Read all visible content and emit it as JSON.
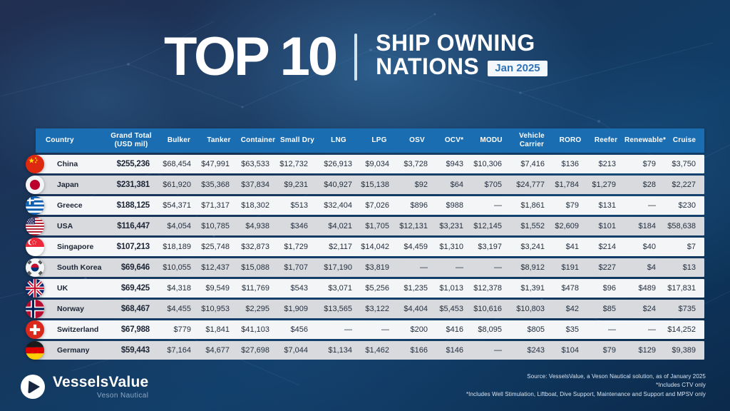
{
  "header": {
    "title_main": "TOP 10",
    "subtitle_line1": "SHIP OWNING",
    "subtitle_line2": "NATIONS",
    "date_badge": "Jan 2025"
  },
  "chart_data": {
    "type": "table",
    "title": "Top 10 Ship Owning Nations, Jan 2025 (values in USD mil)",
    "columns": [
      {
        "key": "country",
        "label": "Country"
      },
      {
        "key": "grand-total",
        "label": "Grand Total\n(USD mil)"
      },
      {
        "key": "bulker",
        "label": "Bulker"
      },
      {
        "key": "tanker",
        "label": "Tanker"
      },
      {
        "key": "container",
        "label": "Container"
      },
      {
        "key": "small-dry",
        "label": "Small Dry"
      },
      {
        "key": "lng",
        "label": "LNG"
      },
      {
        "key": "lpg",
        "label": "LPG"
      },
      {
        "key": "osv",
        "label": "OSV"
      },
      {
        "key": "ocv",
        "label": "OCV*"
      },
      {
        "key": "modu",
        "label": "MODU"
      },
      {
        "key": "vehicle-carrier",
        "label": "Vehicle\nCarrier"
      },
      {
        "key": "roro",
        "label": "RORO"
      },
      {
        "key": "reefer",
        "label": "Reefer"
      },
      {
        "key": "renewable",
        "label": "Renewable*"
      },
      {
        "key": "cruise",
        "label": "Cruise"
      }
    ],
    "rows": [
      {
        "key": "china",
        "country": "China",
        "values": [
          "$255,236",
          "$68,454",
          "$47,991",
          "$63,533",
          "$12,732",
          "$26,913",
          "$9,034",
          "$3,728",
          "$943",
          "$10,306",
          "$7,416",
          "$136",
          "$213",
          "$79",
          "$3,750"
        ]
      },
      {
        "key": "japan",
        "country": "Japan",
        "values": [
          "$231,381",
          "$61,920",
          "$35,368",
          "$37,834",
          "$9,231",
          "$40,927",
          "$15,138",
          "$92",
          "$64",
          "$705",
          "$24,777",
          "$1,784",
          "$1,279",
          "$28",
          "$2,227"
        ]
      },
      {
        "key": "greece",
        "country": "Greece",
        "values": [
          "$188,125",
          "$54,371",
          "$71,317",
          "$18,302",
          "$513",
          "$32,404",
          "$7,026",
          "$896",
          "$988",
          "—",
          "$1,861",
          "$79",
          "$131",
          "—",
          "$230"
        ]
      },
      {
        "key": "usa",
        "country": "USA",
        "values": [
          "$116,447",
          "$4,054",
          "$10,785",
          "$4,938",
          "$346",
          "$4,021",
          "$1,705",
          "$12,131",
          "$3,231",
          "$12,145",
          "$1,552",
          "$2,609",
          "$101",
          "$184",
          "$58,638"
        ]
      },
      {
        "key": "singapore",
        "country": "Singapore",
        "values": [
          "$107,213",
          "$18,189",
          "$25,748",
          "$32,873",
          "$1,729",
          "$2,117",
          "$14,042",
          "$4,459",
          "$1,310",
          "$3,197",
          "$3,241",
          "$41",
          "$214",
          "$40",
          "$7"
        ]
      },
      {
        "key": "south-korea",
        "country": "South Korea",
        "values": [
          "$69,646",
          "$10,055",
          "$12,437",
          "$15,088",
          "$1,707",
          "$17,190",
          "$3,819",
          "—",
          "—",
          "—",
          "$8,912",
          "$191",
          "$227",
          "$4",
          "$13"
        ]
      },
      {
        "key": "uk",
        "country": "UK",
        "values": [
          "$69,425",
          "$4,318",
          "$9,549",
          "$11,769",
          "$543",
          "$3,071",
          "$5,256",
          "$1,235",
          "$1,013",
          "$12,378",
          "$1,391",
          "$478",
          "$96",
          "$489",
          "$17,831"
        ]
      },
      {
        "key": "norway",
        "country": "Norway",
        "values": [
          "$68,467",
          "$4,455",
          "$10,953",
          "$2,295",
          "$1,909",
          "$13,565",
          "$3,122",
          "$4,404",
          "$5,453",
          "$10,616",
          "$10,803",
          "$42",
          "$85",
          "$24",
          "$735"
        ]
      },
      {
        "key": "switzerland",
        "country": "Switzerland",
        "values": [
          "$67,988",
          "$779",
          "$1,841",
          "$41,103",
          "$456",
          "—",
          "—",
          "$200",
          "$416",
          "$8,095",
          "$805",
          "$35",
          "—",
          "—",
          "$14,252"
        ]
      },
      {
        "key": "germany",
        "country": "Germany",
        "values": [
          "$59,443",
          "$7,164",
          "$4,677",
          "$27,698",
          "$7,044",
          "$1,134",
          "$1,462",
          "$166",
          "$146",
          "—",
          "$243",
          "$104",
          "$79",
          "$129",
          "$9,389"
        ]
      }
    ]
  },
  "footer": {
    "logo_text": "VesselsValue",
    "logo_subtext": "Veson Nautical",
    "source_line1": "Source: VesselsValue, a Veson Nautical solution, as of January 2025",
    "source_line2": "*Includes CTV only",
    "source_line3": "*Includes Well Stimulation, Liftboat, Dive Support, Maintenance and Support and MPSV only"
  },
  "colors": {
    "header_blue": "#1a6db1",
    "row_light": "#f4f5f7",
    "row_dark": "#d8dade",
    "badge_text_blue": "#2f73b6",
    "background_navy": "#16365c"
  }
}
